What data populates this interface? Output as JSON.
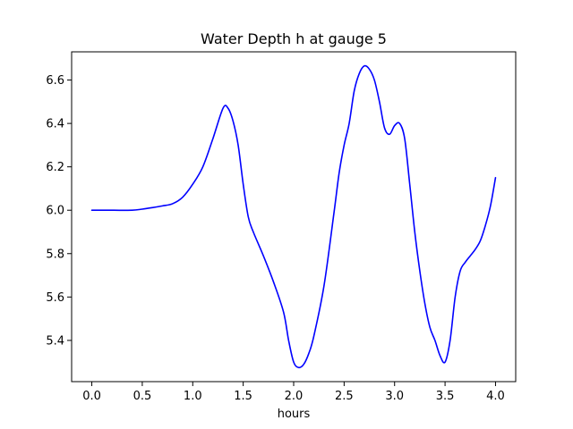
{
  "chart_data": {
    "type": "line",
    "title": "Water Depth h at gauge 5",
    "xlabel": "hours",
    "ylabel": "",
    "xlim": [
      -0.2,
      4.2
    ],
    "ylim": [
      5.21,
      6.73
    ],
    "xticks": [
      0.0,
      0.5,
      1.0,
      1.5,
      2.0,
      2.5,
      3.0,
      3.5,
      4.0
    ],
    "xtick_labels": [
      "0.0",
      "0.5",
      "1.0",
      "1.5",
      "2.0",
      "2.5",
      "3.0",
      "3.5",
      "4.0"
    ],
    "yticks": [
      5.4,
      5.6,
      5.8,
      6.0,
      6.2,
      6.4,
      6.6
    ],
    "ytick_labels": [
      "5.4",
      "5.6",
      "5.8",
      "6.0",
      "6.2",
      "6.4",
      "6.6"
    ],
    "grid": false,
    "series": [
      {
        "color": "#0000ff",
        "x": [
          0.0,
          0.2,
          0.4,
          0.5,
          0.6,
          0.7,
          0.8,
          0.9,
          1.0,
          1.1,
          1.2,
          1.3,
          1.35,
          1.4,
          1.45,
          1.5,
          1.55,
          1.6,
          1.7,
          1.8,
          1.9,
          1.95,
          2.0,
          2.05,
          2.1,
          2.15,
          2.2,
          2.3,
          2.4,
          2.45,
          2.5,
          2.55,
          2.6,
          2.65,
          2.7,
          2.75,
          2.8,
          2.85,
          2.9,
          2.95,
          3.0,
          3.05,
          3.1,
          3.15,
          3.2,
          3.25,
          3.3,
          3.35,
          3.4,
          3.45,
          3.5,
          3.55,
          3.6,
          3.65,
          3.7,
          3.75,
          3.8,
          3.85,
          3.9,
          3.95,
          4.0
        ],
        "y": [
          6.0,
          6.0,
          6.0,
          6.005,
          6.012,
          6.02,
          6.03,
          6.06,
          6.12,
          6.2,
          6.33,
          6.47,
          6.47,
          6.41,
          6.3,
          6.12,
          5.97,
          5.9,
          5.79,
          5.67,
          5.53,
          5.4,
          5.3,
          5.275,
          5.29,
          5.34,
          5.42,
          5.65,
          5.99,
          6.17,
          6.3,
          6.4,
          6.55,
          6.63,
          6.665,
          6.65,
          6.6,
          6.5,
          6.38,
          6.35,
          6.39,
          6.4,
          6.33,
          6.12,
          5.9,
          5.72,
          5.57,
          5.46,
          5.4,
          5.33,
          5.3,
          5.4,
          5.6,
          5.72,
          5.76,
          5.79,
          5.82,
          5.86,
          5.93,
          6.02,
          6.15
        ]
      }
    ]
  }
}
